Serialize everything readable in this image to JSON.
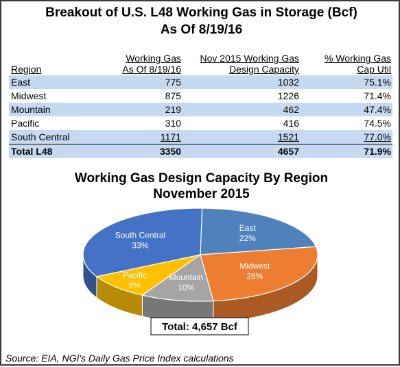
{
  "title_line1": "Breakout of U.S. L48 Working Gas in Storage (Bcf)",
  "title_line2": "As Of 8/19/16",
  "table": {
    "headers": {
      "region": "Region",
      "wg_line1": "Working Gas",
      "wg_line2": "As Of 8/19/16",
      "cap_line1": "Nov 2015 Working Gas",
      "cap_line2": "Design Capacity",
      "pct_line1": "% Working Gas",
      "pct_line2": "Cap Util"
    },
    "rows": [
      {
        "region": "East",
        "working_gas": "775",
        "capacity": "1032",
        "util": "75.1%"
      },
      {
        "region": "Midwest",
        "working_gas": "875",
        "capacity": "1226",
        "util": "71.4%"
      },
      {
        "region": "Mountain",
        "working_gas": "219",
        "capacity": "462",
        "util": "47.4%"
      },
      {
        "region": "Pacific",
        "working_gas": "310",
        "capacity": "416",
        "util": "74.5%"
      },
      {
        "region": "South Central",
        "working_gas": "1171",
        "capacity": "1521",
        "util": "77.0%"
      }
    ],
    "total": {
      "region": "Total L48",
      "working_gas": "3350",
      "capacity": "4657",
      "util": "71.9%"
    }
  },
  "pie_title_line1": "Working Gas Design Capacity By Region",
  "pie_title_line2": "November 2015",
  "total_label": "Total: 4,657 Bcf",
  "source": "Source: EIA, NGI's Daily Gas Price Index calculations",
  "chart_data": {
    "type": "pie",
    "title": "Working Gas Design Capacity By Region November 2015",
    "slices": [
      {
        "label": "East",
        "value": 22,
        "pct_label": "22%",
        "color": "#4f81bd"
      },
      {
        "label": "Midwest",
        "value": 26,
        "pct_label": "26%",
        "color": "#ed7d31"
      },
      {
        "label": "Mountain",
        "value": 10,
        "pct_label": "10%",
        "color": "#a5a5a5"
      },
      {
        "label": "Pacific",
        "value": 9,
        "pct_label": "9%",
        "color": "#ffc000"
      },
      {
        "label": "South Central",
        "value": 33,
        "pct_label": "33%",
        "color": "#4472c4"
      }
    ]
  }
}
